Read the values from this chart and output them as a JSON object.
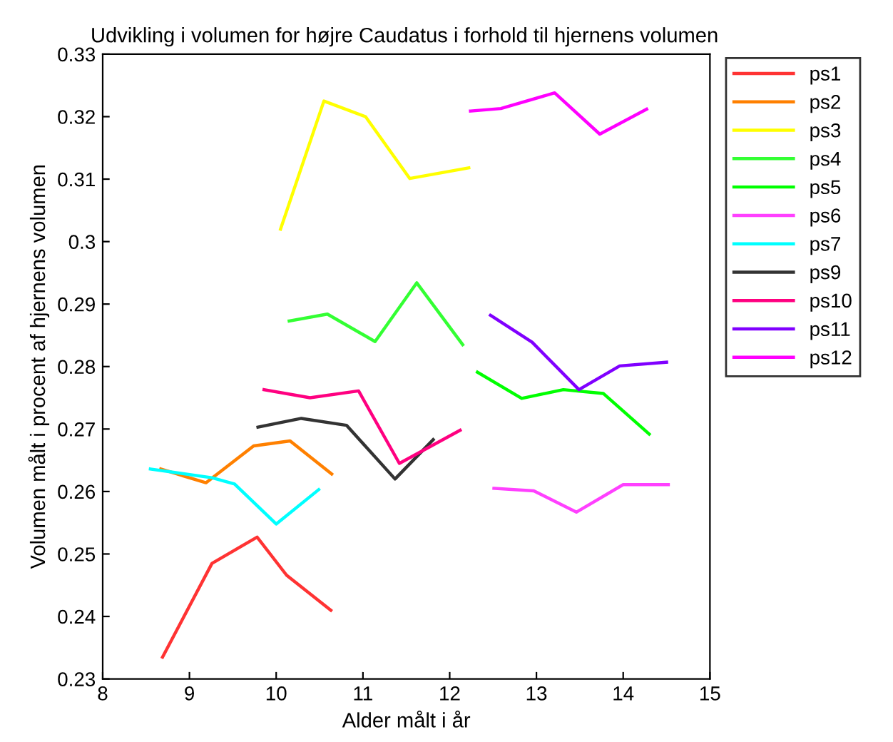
{
  "chart_data": {
    "type": "line",
    "title": "Udvikling i volumen for højre Caudatus i forhold til hjernens volumen",
    "xlabel": "Alder målt i år",
    "ylabel": "Volumen målt i procent af hjernens volumen",
    "xlim": [
      8,
      15
    ],
    "ylim": [
      0.23,
      0.33
    ],
    "xticks": [
      8,
      9,
      10,
      11,
      12,
      13,
      14,
      15
    ],
    "yticks": [
      0.23,
      0.24,
      0.25,
      0.26,
      0.27,
      0.28,
      0.29,
      0.3,
      0.31,
      0.32,
      0.33
    ],
    "grid": false,
    "legend": "right",
    "marker": "none",
    "line_style": "solid",
    "series": [
      {
        "name": "ps1",
        "color": "#ff3333",
        "x": [
          8.69,
          9.26,
          9.78,
          10.12,
          10.63
        ],
        "values": [
          0.2335,
          0.2485,
          0.2527,
          0.2466,
          0.241
        ]
      },
      {
        "name": "ps2",
        "color": "#ff8000",
        "x": [
          8.67,
          9.19,
          9.74,
          10.16,
          10.64
        ],
        "values": [
          0.2636,
          0.2614,
          0.2673,
          0.2681,
          0.2628
        ]
      },
      {
        "name": "ps3",
        "color": "#ffff00",
        "x": [
          10.05,
          10.55,
          11.03,
          11.54,
          12.22
        ],
        "values": [
          0.302,
          0.3225,
          0.32,
          0.3101,
          0.3118
        ]
      },
      {
        "name": "ps4",
        "color": "#33ff33",
        "x": [
          10.15,
          10.59,
          11.14,
          11.62,
          12.15
        ],
        "values": [
          0.2873,
          0.2884,
          0.284,
          0.2934,
          0.2835
        ]
      },
      {
        "name": "ps5",
        "color": "#00ff00",
        "x": [
          12.32,
          12.83,
          13.31,
          13.77,
          14.3
        ],
        "values": [
          0.2791,
          0.2749,
          0.2763,
          0.2757,
          0.2692
        ]
      },
      {
        "name": "ps6",
        "color": "#ff40ff",
        "x": [
          12.51,
          12.97,
          13.46,
          14.0,
          14.52
        ],
        "values": [
          0.2605,
          0.2601,
          0.2567,
          0.2611,
          0.2611
        ]
      },
      {
        "name": "ps7",
        "color": "#00ffff",
        "x": [
          8.55,
          9.26,
          9.52,
          10.0,
          10.49
        ],
        "values": [
          0.2636,
          0.2622,
          0.2612,
          0.2548,
          0.2603
        ]
      },
      {
        "name": "ps9",
        "color": "#333333",
        "x": [
          9.79,
          10.29,
          10.81,
          11.37,
          11.81
        ],
        "values": [
          0.2703,
          0.2717,
          0.2706,
          0.262,
          0.2683
        ]
      },
      {
        "name": "ps10",
        "color": "#ff0080",
        "x": [
          9.86,
          10.39,
          10.95,
          11.42,
          12.12
        ],
        "values": [
          0.2763,
          0.275,
          0.2761,
          0.2645,
          0.2698
        ]
      },
      {
        "name": "ps11",
        "color": "#8000ff",
        "x": [
          12.47,
          12.95,
          13.49,
          13.96,
          14.5
        ],
        "values": [
          0.2882,
          0.2839,
          0.2763,
          0.2801,
          0.2807
        ]
      },
      {
        "name": "ps12",
        "color": "#ff00ff",
        "x": [
          12.24,
          12.59,
          13.21,
          13.73,
          14.27
        ],
        "values": [
          0.3209,
          0.3213,
          0.3238,
          0.3172,
          0.3212
        ]
      }
    ]
  }
}
